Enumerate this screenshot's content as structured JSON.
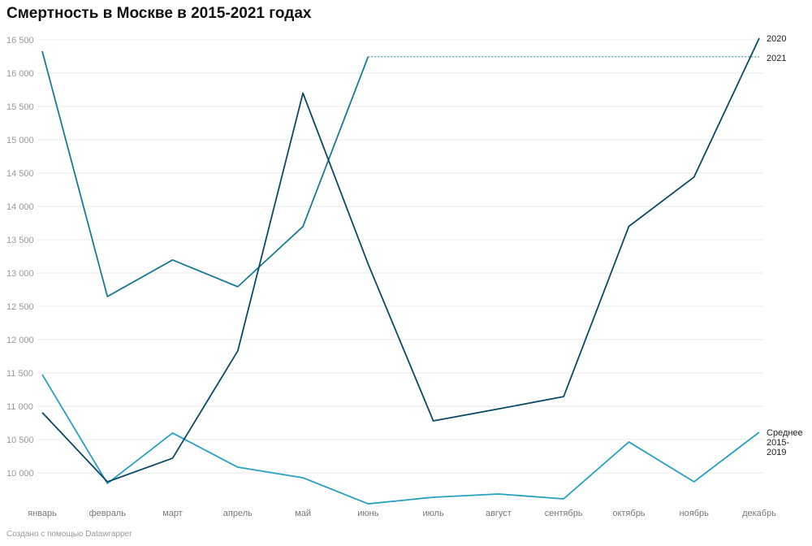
{
  "chart_data": {
    "type": "line",
    "title": "Смертность в Москве в 2015-2021 годах",
    "xlabel": "",
    "ylabel": "",
    "ylim": [
      9450,
      16700
    ],
    "yticks": [
      10000,
      10500,
      11000,
      11500,
      12000,
      12500,
      13000,
      13500,
      14000,
      14500,
      15000,
      15500,
      16000,
      16500
    ],
    "ytick_labels": [
      "10 000",
      "10 500",
      "11 000",
      "11 500",
      "12 000",
      "12 500",
      "13 000",
      "13 500",
      "14 000",
      "14 500",
      "15 000",
      "15 500",
      "16 000",
      "16 500"
    ],
    "grid": true,
    "categories": [
      "январь",
      "февраль",
      "март",
      "апрель",
      "май",
      "июнь",
      "июль",
      "август",
      "сентябрь",
      "октябрь",
      "ноябрь",
      "декабрь"
    ],
    "series": [
      {
        "name": "2020",
        "label": "2020",
        "color": "#0b4a66",
        "values": [
          10906,
          9866,
          10220,
          11830,
          15700,
          13135,
          10780,
          10960,
          11145,
          13700,
          14440,
          16525
        ]
      },
      {
        "name": "2021",
        "label": "2021",
        "color": "#1b7b96",
        "values": [
          16330,
          12647,
          13196,
          12794,
          13697,
          16246,
          null,
          null,
          null,
          null,
          null,
          null
        ],
        "reference_dotted_value": 16246
      },
      {
        "name": "Среднее 2015-2019",
        "label_lines": [
          "Среднее",
          "2015-",
          "2019"
        ],
        "color": "#2aa0c0",
        "values": [
          11476,
          9841,
          10598,
          10085,
          9927,
          9536,
          9634,
          9683,
          9610,
          10464,
          9866,
          10610
        ]
      }
    ]
  },
  "credit": "Создано с помощью Datawrapper"
}
